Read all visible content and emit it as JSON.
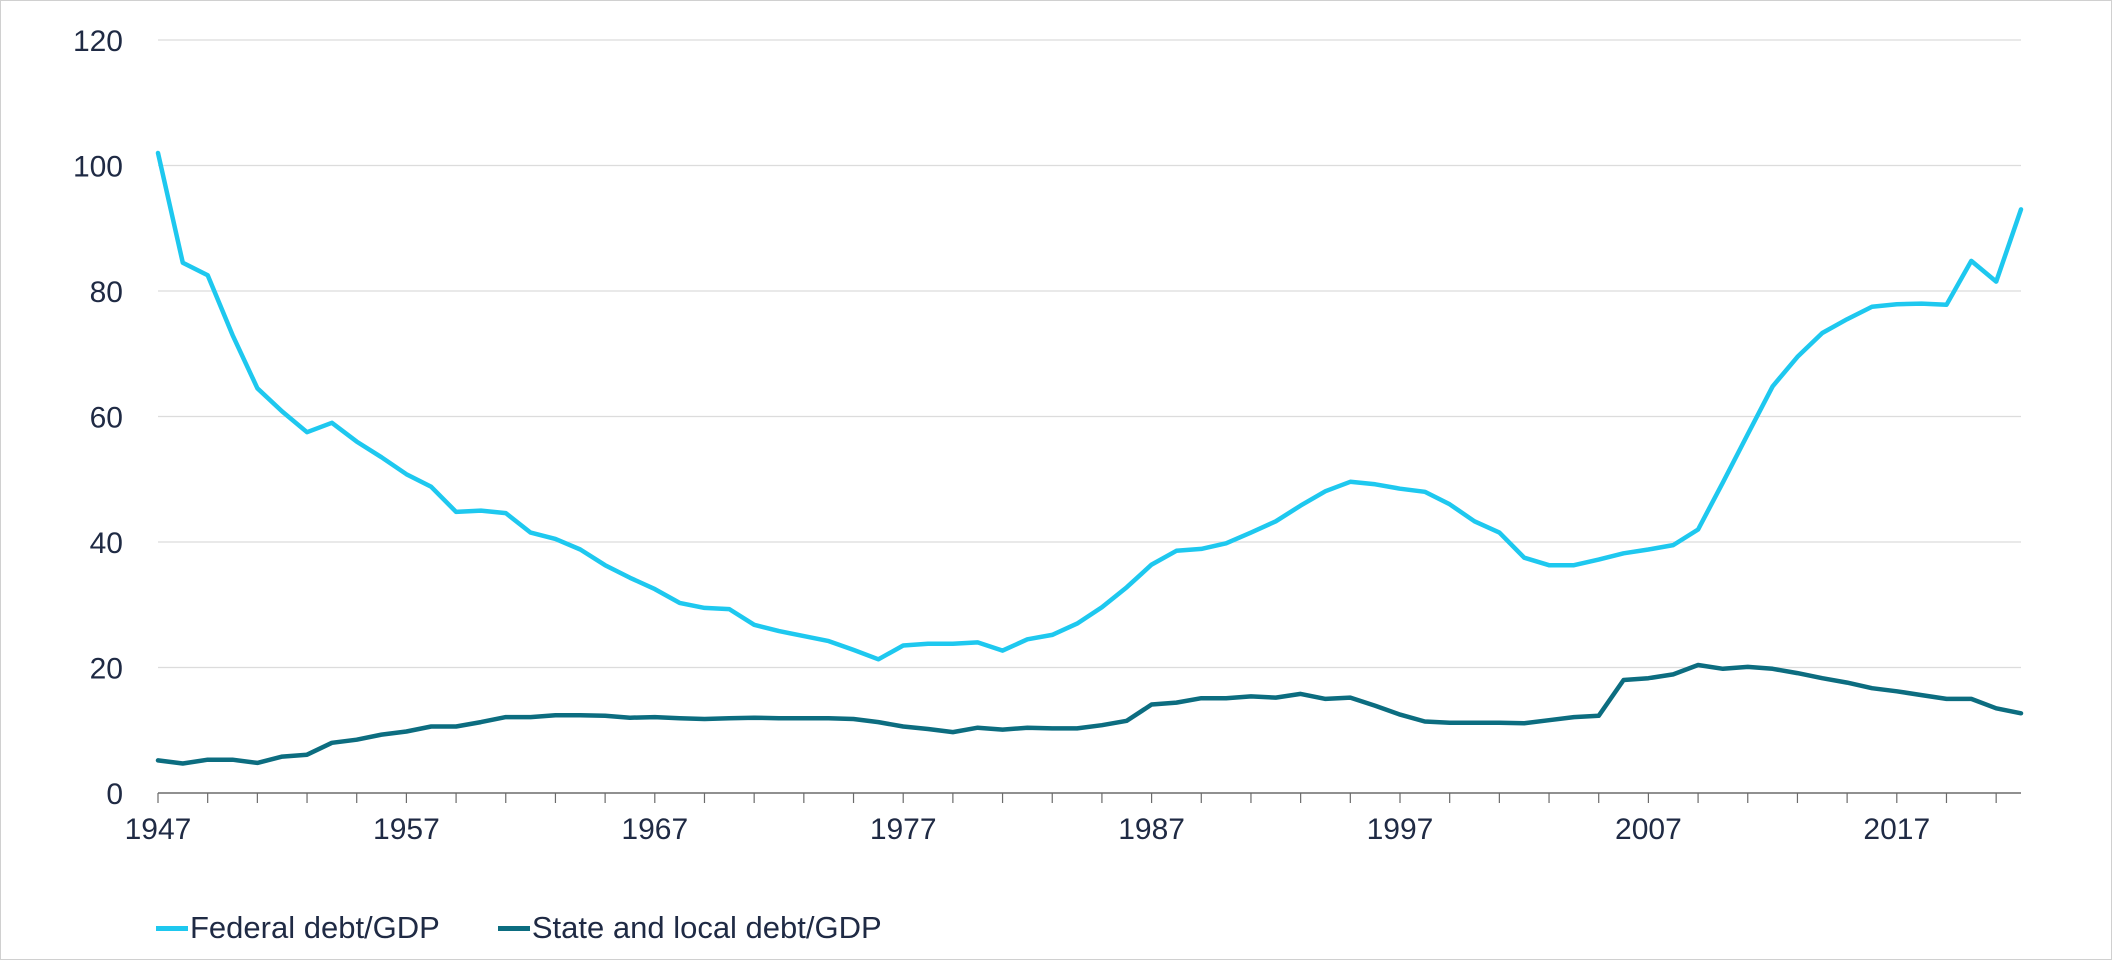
{
  "chart_data": {
    "type": "line",
    "title": "",
    "xlabel": "",
    "ylabel": "",
    "xlim": [
      1947,
      2022
    ],
    "ylim": [
      0,
      120
    ],
    "grid": true,
    "legend_position": "bottom-left",
    "x_ticks": [
      "1947",
      "1957",
      "1967",
      "1977",
      "1987",
      "1997",
      "2007",
      "2017"
    ],
    "y_ticks": [
      "0",
      "20",
      "40",
      "60",
      "80",
      "100",
      "120"
    ],
    "x": [
      1947,
      1948,
      1949,
      1950,
      1951,
      1952,
      1953,
      1954,
      1955,
      1956,
      1957,
      1958,
      1959,
      1960,
      1961,
      1962,
      1963,
      1964,
      1965,
      1966,
      1967,
      1968,
      1969,
      1970,
      1971,
      1972,
      1973,
      1974,
      1975,
      1976,
      1977,
      1978,
      1979,
      1980,
      1981,
      1982,
      1983,
      1984,
      1985,
      1986,
      1987,
      1988,
      1989,
      1990,
      1991,
      1992,
      1993,
      1994,
      1995,
      1996,
      1997,
      1998,
      1999,
      2000,
      2001,
      2002,
      2003,
      2004,
      2005,
      2006,
      2007,
      2008,
      2009,
      2010,
      2011,
      2012,
      2013,
      2014,
      2015,
      2016,
      2017,
      2018,
      2019,
      2020,
      2021,
      2022
    ],
    "series": [
      {
        "name": "Federal debt/GDP",
        "color": "#1ec8ef",
        "values": [
          102,
          84.5,
          82.5,
          73,
          64.5,
          60.8,
          57.5,
          59,
          56,
          53.5,
          50.8,
          48.8,
          44.8,
          45,
          44.6,
          41.5,
          40.5,
          38.8,
          36.3,
          34.3,
          32.5,
          30.3,
          29.5,
          29.3,
          26.8,
          25.8,
          25,
          24.2,
          22.8,
          21.3,
          23.5,
          23.8,
          23.8,
          24,
          22.7,
          24.5,
          25.2,
          27,
          29.6,
          32.8,
          36.4,
          38.6,
          38.9,
          39.8,
          41.5,
          43.3,
          45.8,
          48.1,
          49.6,
          49.2,
          48.5,
          48,
          46,
          43.3,
          41.5,
          37.5,
          36.3,
          36.3,
          37.2,
          38.2,
          38.8,
          39.5,
          42,
          49.5,
          57.2,
          64.8,
          69.5,
          73.3,
          75.5,
          77.5,
          77.9,
          78,
          77.8,
          84.8,
          81.5,
          93
        ]
      },
      {
        "name": "State and local debt/GDP",
        "color": "#0c6d80",
        "values": [
          5.2,
          4.7,
          5.3,
          5.3,
          4.8,
          5.8,
          6.1,
          8,
          8.5,
          9.3,
          9.8,
          10.6,
          10.6,
          11.3,
          12.1,
          12.1,
          12.4,
          12.4,
          12.3,
          12,
          12.1,
          11.9,
          11.8,
          11.9,
          12,
          11.9,
          11.9,
          11.9,
          11.8,
          11.3,
          10.6,
          10.2,
          9.7,
          10.4,
          10.1,
          10.4,
          10.3,
          10.3,
          10.8,
          11.5,
          14.1,
          14.4,
          15.1,
          15.1,
          15.4,
          15.2,
          15.8,
          15,
          15.2,
          13.9,
          12.5,
          11.4,
          11.2,
          11.2,
          11.2,
          11.1,
          11.6,
          12.1,
          12.3,
          18,
          18.3,
          18.9,
          20.4,
          19.8,
          20.1,
          19.8,
          19.1,
          18.3,
          17.6,
          16.7,
          16.2,
          15.6,
          15,
          15,
          13.5,
          12.7
        ]
      }
    ]
  }
}
